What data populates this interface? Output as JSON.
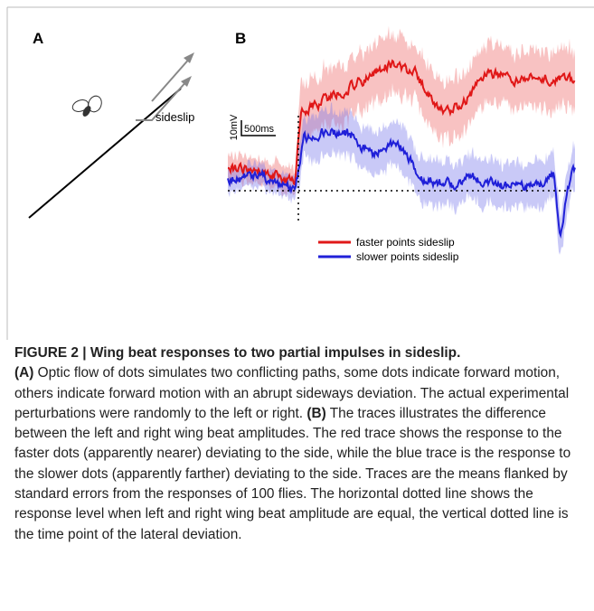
{
  "panel_a": {
    "label": "A",
    "annotation": "sideslip"
  },
  "panel_b": {
    "label": "B",
    "scale_y": "10mV",
    "scale_x": "500ms",
    "legend": [
      "faster points sideslip",
      "slower points sideslip"
    ]
  },
  "caption": {
    "title": "FIGURE 2 | Wing beat responses to two partial impulses in sideslip.",
    "parts": [
      {
        "label": "(A)",
        "text": " Optic flow of dots simulates two conflicting paths, some dots indicate forward motion, others indicate forward motion with an abrupt sideways deviation. The actual experimental perturbations were randomly to the left or right. "
      },
      {
        "label": "(B)",
        "text": " The traces illustrates the difference between the left and right wing beat amplitudes. The red trace shows the response to the faster dots (apparently nearer) deviating to the side, while the blue trace is the response to the slower dots (apparently farther) deviating to the side. Traces are the means flanked by standard errors from the responses of 100 flies. The horizontal dotted line shows the response level when left and right wing beat amplitude are equal, the vertical dotted line is the time point of the lateral deviation."
      }
    ]
  }
}
